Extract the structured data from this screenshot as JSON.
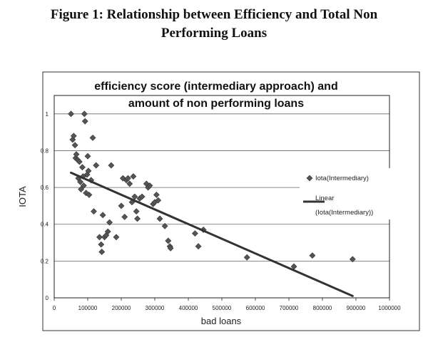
{
  "figure": {
    "title_line1": "Figure 1: Relationship between Efficiency and Total Non",
    "title_line2": "Performing Loans"
  },
  "chart_data": {
    "type": "scatter",
    "title_line1": "efficiency score (intermediary approach) and",
    "title_line2": "amount of non performing loans",
    "xlabel": "bad loans",
    "ylabel": "IOTA",
    "xlim": [
      0,
      1000000
    ],
    "ylim": [
      0,
      1.1
    ],
    "xticks": [
      0,
      100000,
      200000,
      300000,
      400000,
      500000,
      600000,
      700000,
      800000,
      900000,
      1000000
    ],
    "xtick_labels": [
      "0",
      "100000",
      "200000",
      "300000",
      "400000",
      "500000",
      "600000",
      "700000",
      "800000",
      "900000",
      "1000000"
    ],
    "yticks": [
      0,
      0.2,
      0.4,
      0.6,
      0.8,
      1
    ],
    "ytick_labels": [
      "0",
      "0.2",
      "0.4",
      "0.6",
      "0.8",
      "1"
    ],
    "grid": "horizontal",
    "legend_position": "right",
    "series": [
      {
        "name": "Iota(Intermediary)",
        "marker": "diamond",
        "color": "#555555",
        "points": [
          [
            50000,
            1.0
          ],
          [
            55000,
            0.86
          ],
          [
            58000,
            0.88
          ],
          [
            62000,
            0.83
          ],
          [
            64000,
            0.76
          ],
          [
            66000,
            0.78
          ],
          [
            70000,
            0.75
          ],
          [
            72000,
            0.65
          ],
          [
            75000,
            0.74
          ],
          [
            78000,
            0.63
          ],
          [
            80000,
            0.59
          ],
          [
            84000,
            0.71
          ],
          [
            86000,
            0.66
          ],
          [
            88000,
            0.61
          ],
          [
            90000,
            1.0
          ],
          [
            92000,
            0.96
          ],
          [
            95000,
            0.57
          ],
          [
            98000,
            0.67
          ],
          [
            100000,
            0.77
          ],
          [
            102000,
            0.69
          ],
          [
            104000,
            0.56
          ],
          [
            110000,
            0.64
          ],
          [
            115000,
            0.87
          ],
          [
            118000,
            0.47
          ],
          [
            125000,
            0.72
          ],
          [
            135000,
            0.33
          ],
          [
            140000,
            0.29
          ],
          [
            142000,
            0.25
          ],
          [
            145000,
            0.45
          ],
          [
            150000,
            0.33
          ],
          [
            155000,
            0.34
          ],
          [
            160000,
            0.36
          ],
          [
            165000,
            0.41
          ],
          [
            170000,
            0.72
          ],
          [
            185000,
            0.33
          ],
          [
            200000,
            0.5
          ],
          [
            205000,
            0.65
          ],
          [
            210000,
            0.44
          ],
          [
            215000,
            0.64
          ],
          [
            220000,
            0.65
          ],
          [
            225000,
            0.62
          ],
          [
            232000,
            0.52
          ],
          [
            236000,
            0.66
          ],
          [
            240000,
            0.55
          ],
          [
            245000,
            0.47
          ],
          [
            248000,
            0.43
          ],
          [
            255000,
            0.54
          ],
          [
            262000,
            0.55
          ],
          [
            275000,
            0.62
          ],
          [
            280000,
            0.6
          ],
          [
            285000,
            0.61
          ],
          [
            295000,
            0.51
          ],
          [
            300000,
            0.52
          ],
          [
            305000,
            0.56
          ],
          [
            310000,
            0.53
          ],
          [
            315000,
            0.43
          ],
          [
            330000,
            0.39
          ],
          [
            340000,
            0.31
          ],
          [
            345000,
            0.28
          ],
          [
            347000,
            0.27
          ],
          [
            420000,
            0.35
          ],
          [
            430000,
            0.28
          ],
          [
            445000,
            0.37
          ],
          [
            575000,
            0.22
          ],
          [
            715000,
            0.17
          ],
          [
            770000,
            0.23
          ],
          [
            890000,
            0.21
          ]
        ]
      }
    ],
    "trendline": {
      "name": "Linear (Iota(Intermediary))",
      "legend_line1": "Linear",
      "legend_line2": "(Iota(Intermediary))",
      "x1": 50000,
      "y1": 0.68,
      "x2": 890000,
      "y2": 0.01,
      "color": "#333333"
    }
  }
}
